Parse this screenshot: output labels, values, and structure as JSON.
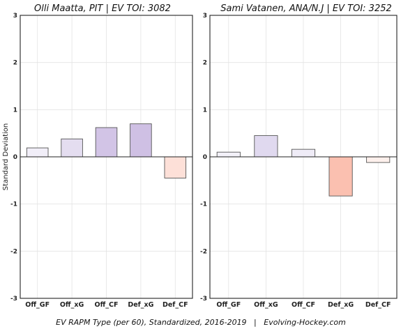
{
  "chart_data": [
    {
      "type": "bar",
      "title": "Olli Maatta, PIT  |  EV TOI: 3082",
      "ylabel": "Standard Deviation",
      "categories": [
        "Off_GF",
        "Off_xG",
        "Off_CF",
        "Def_xG",
        "Def_CF"
      ],
      "values": [
        0.19,
        0.38,
        0.62,
        0.7,
        -0.45
      ],
      "colors": [
        "#f1eef8",
        "#e4ddf0",
        "#d2c4e6",
        "#cfc0e4",
        "#fde0d8"
      ],
      "ylim": [
        -3,
        3
      ],
      "yticks": [
        "-3",
        "-2",
        "-1",
        "0",
        "1",
        "2",
        "3"
      ],
      "grid": true
    },
    {
      "type": "bar",
      "title": "Sami Vatanen, ANA/N.J  |  EV TOI: 3252",
      "ylabel": "",
      "categories": [
        "Off_GF",
        "Off_xG",
        "Off_CF",
        "Def_xG",
        "Def_CF"
      ],
      "values": [
        0.1,
        0.45,
        0.16,
        -0.83,
        -0.12
      ],
      "colors": [
        "#f3f1f9",
        "#e0d9ef",
        "#efecf7",
        "#fbc0b0",
        "#fdf0ec"
      ],
      "ylim": [
        -3,
        3
      ],
      "yticks": [
        "-3",
        "-2",
        "-1",
        "0",
        "1",
        "2",
        "3"
      ],
      "grid": true
    }
  ],
  "caption": "EV RAPM Type (per 60), Standardized, 2016-2019   |   Evolving-Hockey.com"
}
